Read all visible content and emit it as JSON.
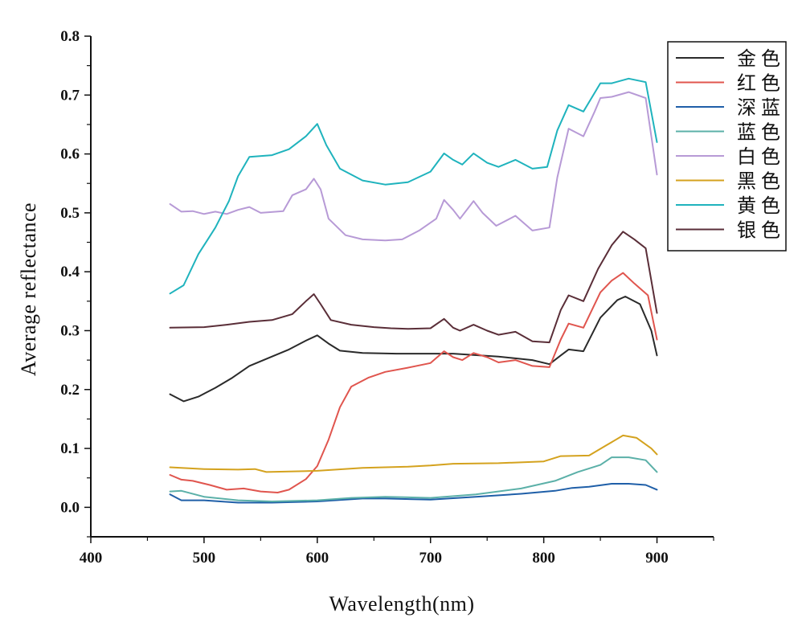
{
  "chart_data": {
    "type": "line",
    "title": "",
    "xlabel": "Wavelength(nm)",
    "ylabel": "Average reflectance",
    "xlim": [
      400,
      950
    ],
    "ylim": [
      -0.05,
      0.8
    ],
    "xticks": [
      "400",
      "500",
      "600",
      "700",
      "800",
      "900"
    ],
    "yticks": [
      "0.0",
      "0.1",
      "0.2",
      "0.3",
      "0.4",
      "0.5",
      "0.6",
      "0.7",
      "0.8"
    ],
    "legend_position": "top-right",
    "series": [
      {
        "name": "金色",
        "color": "#2a2a2a",
        "points": [
          [
            470,
            0.192
          ],
          [
            482,
            0.18
          ],
          [
            495,
            0.188
          ],
          [
            510,
            0.203
          ],
          [
            525,
            0.22
          ],
          [
            540,
            0.24
          ],
          [
            560,
            0.256
          ],
          [
            575,
            0.268
          ],
          [
            590,
            0.283
          ],
          [
            600,
            0.292
          ],
          [
            610,
            0.278
          ],
          [
            620,
            0.266
          ],
          [
            640,
            0.262
          ],
          [
            670,
            0.261
          ],
          [
            700,
            0.261
          ],
          [
            720,
            0.261
          ],
          [
            760,
            0.256
          ],
          [
            790,
            0.25
          ],
          [
            805,
            0.243
          ],
          [
            815,
            0.258
          ],
          [
            822,
            0.268
          ],
          [
            835,
            0.265
          ],
          [
            850,
            0.322
          ],
          [
            865,
            0.352
          ],
          [
            872,
            0.358
          ],
          [
            885,
            0.345
          ],
          [
            895,
            0.3
          ],
          [
            900,
            0.258
          ]
        ]
      },
      {
        "name": "红色",
        "color": "#e0554e",
        "points": [
          [
            470,
            0.055
          ],
          [
            480,
            0.047
          ],
          [
            490,
            0.045
          ],
          [
            505,
            0.038
          ],
          [
            520,
            0.03
          ],
          [
            535,
            0.032
          ],
          [
            550,
            0.027
          ],
          [
            565,
            0.025
          ],
          [
            575,
            0.03
          ],
          [
            590,
            0.048
          ],
          [
            600,
            0.07
          ],
          [
            610,
            0.115
          ],
          [
            620,
            0.17
          ],
          [
            630,
            0.205
          ],
          [
            645,
            0.22
          ],
          [
            660,
            0.23
          ],
          [
            680,
            0.237
          ],
          [
            700,
            0.245
          ],
          [
            712,
            0.265
          ],
          [
            720,
            0.255
          ],
          [
            728,
            0.25
          ],
          [
            738,
            0.262
          ],
          [
            750,
            0.255
          ],
          [
            760,
            0.246
          ],
          [
            775,
            0.25
          ],
          [
            790,
            0.24
          ],
          [
            805,
            0.238
          ],
          [
            815,
            0.285
          ],
          [
            822,
            0.312
          ],
          [
            835,
            0.305
          ],
          [
            850,
            0.365
          ],
          [
            860,
            0.385
          ],
          [
            870,
            0.398
          ],
          [
            880,
            0.38
          ],
          [
            892,
            0.36
          ],
          [
            900,
            0.285
          ]
        ]
      },
      {
        "name": "深蓝",
        "color": "#1f5fa8",
        "points": [
          [
            470,
            0.022
          ],
          [
            480,
            0.012
          ],
          [
            500,
            0.012
          ],
          [
            530,
            0.008
          ],
          [
            560,
            0.008
          ],
          [
            600,
            0.01
          ],
          [
            640,
            0.015
          ],
          [
            660,
            0.015
          ],
          [
            700,
            0.013
          ],
          [
            740,
            0.018
          ],
          [
            780,
            0.023
          ],
          [
            810,
            0.028
          ],
          [
            825,
            0.033
          ],
          [
            840,
            0.035
          ],
          [
            860,
            0.04
          ],
          [
            875,
            0.04
          ],
          [
            890,
            0.038
          ],
          [
            900,
            0.03
          ]
        ]
      },
      {
        "name": "蓝色",
        "color": "#5bb0a8",
        "points": [
          [
            470,
            0.027
          ],
          [
            480,
            0.028
          ],
          [
            500,
            0.018
          ],
          [
            530,
            0.012
          ],
          [
            560,
            0.01
          ],
          [
            600,
            0.012
          ],
          [
            630,
            0.016
          ],
          [
            660,
            0.018
          ],
          [
            700,
            0.016
          ],
          [
            740,
            0.022
          ],
          [
            780,
            0.032
          ],
          [
            810,
            0.045
          ],
          [
            830,
            0.06
          ],
          [
            850,
            0.072
          ],
          [
            860,
            0.085
          ],
          [
            875,
            0.085
          ],
          [
            890,
            0.08
          ],
          [
            900,
            0.06
          ]
        ]
      },
      {
        "name": "白色",
        "color": "#b79ad6",
        "points": [
          [
            470,
            0.515
          ],
          [
            480,
            0.502
          ],
          [
            490,
            0.503
          ],
          [
            500,
            0.498
          ],
          [
            510,
            0.502
          ],
          [
            520,
            0.498
          ],
          [
            530,
            0.505
          ],
          [
            540,
            0.51
          ],
          [
            550,
            0.5
          ],
          [
            570,
            0.503
          ],
          [
            578,
            0.53
          ],
          [
            590,
            0.54
          ],
          [
            597,
            0.558
          ],
          [
            603,
            0.54
          ],
          [
            610,
            0.49
          ],
          [
            625,
            0.462
          ],
          [
            640,
            0.455
          ],
          [
            660,
            0.453
          ],
          [
            675,
            0.455
          ],
          [
            690,
            0.47
          ],
          [
            705,
            0.49
          ],
          [
            712,
            0.522
          ],
          [
            720,
            0.505
          ],
          [
            726,
            0.49
          ],
          [
            738,
            0.52
          ],
          [
            746,
            0.5
          ],
          [
            758,
            0.478
          ],
          [
            775,
            0.495
          ],
          [
            790,
            0.47
          ],
          [
            805,
            0.475
          ],
          [
            812,
            0.56
          ],
          [
            822,
            0.643
          ],
          [
            835,
            0.63
          ],
          [
            845,
            0.672
          ],
          [
            850,
            0.695
          ],
          [
            860,
            0.697
          ],
          [
            875,
            0.705
          ],
          [
            890,
            0.695
          ],
          [
            900,
            0.565
          ]
        ]
      },
      {
        "name": "黑色",
        "color": "#d4a21e",
        "points": [
          [
            470,
            0.068
          ],
          [
            500,
            0.065
          ],
          [
            530,
            0.064
          ],
          [
            545,
            0.065
          ],
          [
            555,
            0.06
          ],
          [
            600,
            0.062
          ],
          [
            640,
            0.067
          ],
          [
            680,
            0.069
          ],
          [
            700,
            0.071
          ],
          [
            720,
            0.074
          ],
          [
            760,
            0.075
          ],
          [
            800,
            0.078
          ],
          [
            815,
            0.087
          ],
          [
            840,
            0.088
          ],
          [
            855,
            0.105
          ],
          [
            870,
            0.122
          ],
          [
            882,
            0.118
          ],
          [
            895,
            0.1
          ],
          [
            900,
            0.09
          ]
        ]
      },
      {
        "name": "黄色",
        "color": "#1fb3bd",
        "points": [
          [
            470,
            0.363
          ],
          [
            482,
            0.377
          ],
          [
            495,
            0.43
          ],
          [
            510,
            0.475
          ],
          [
            522,
            0.52
          ],
          [
            530,
            0.562
          ],
          [
            540,
            0.595
          ],
          [
            560,
            0.598
          ],
          [
            575,
            0.608
          ],
          [
            590,
            0.63
          ],
          [
            600,
            0.651
          ],
          [
            608,
            0.615
          ],
          [
            620,
            0.575
          ],
          [
            640,
            0.555
          ],
          [
            660,
            0.548
          ],
          [
            680,
            0.552
          ],
          [
            700,
            0.57
          ],
          [
            712,
            0.601
          ],
          [
            720,
            0.59
          ],
          [
            728,
            0.582
          ],
          [
            738,
            0.601
          ],
          [
            750,
            0.585
          ],
          [
            760,
            0.578
          ],
          [
            775,
            0.59
          ],
          [
            790,
            0.575
          ],
          [
            803,
            0.578
          ],
          [
            812,
            0.64
          ],
          [
            822,
            0.683
          ],
          [
            835,
            0.672
          ],
          [
            850,
            0.72
          ],
          [
            860,
            0.72
          ],
          [
            875,
            0.728
          ],
          [
            890,
            0.722
          ],
          [
            900,
            0.62
          ]
        ]
      },
      {
        "name": "银色",
        "color": "#5a2e38",
        "points": [
          [
            470,
            0.305
          ],
          [
            500,
            0.306
          ],
          [
            520,
            0.31
          ],
          [
            540,
            0.315
          ],
          [
            560,
            0.318
          ],
          [
            578,
            0.328
          ],
          [
            590,
            0.35
          ],
          [
            597,
            0.362
          ],
          [
            603,
            0.345
          ],
          [
            612,
            0.318
          ],
          [
            630,
            0.31
          ],
          [
            650,
            0.306
          ],
          [
            665,
            0.304
          ],
          [
            680,
            0.303
          ],
          [
            700,
            0.304
          ],
          [
            712,
            0.32
          ],
          [
            720,
            0.305
          ],
          [
            726,
            0.3
          ],
          [
            738,
            0.31
          ],
          [
            750,
            0.3
          ],
          [
            760,
            0.293
          ],
          [
            775,
            0.298
          ],
          [
            790,
            0.282
          ],
          [
            805,
            0.28
          ],
          [
            815,
            0.335
          ],
          [
            822,
            0.36
          ],
          [
            835,
            0.35
          ],
          [
            848,
            0.405
          ],
          [
            860,
            0.445
          ],
          [
            870,
            0.468
          ],
          [
            880,
            0.455
          ],
          [
            890,
            0.44
          ],
          [
            900,
            0.33
          ]
        ]
      }
    ]
  }
}
